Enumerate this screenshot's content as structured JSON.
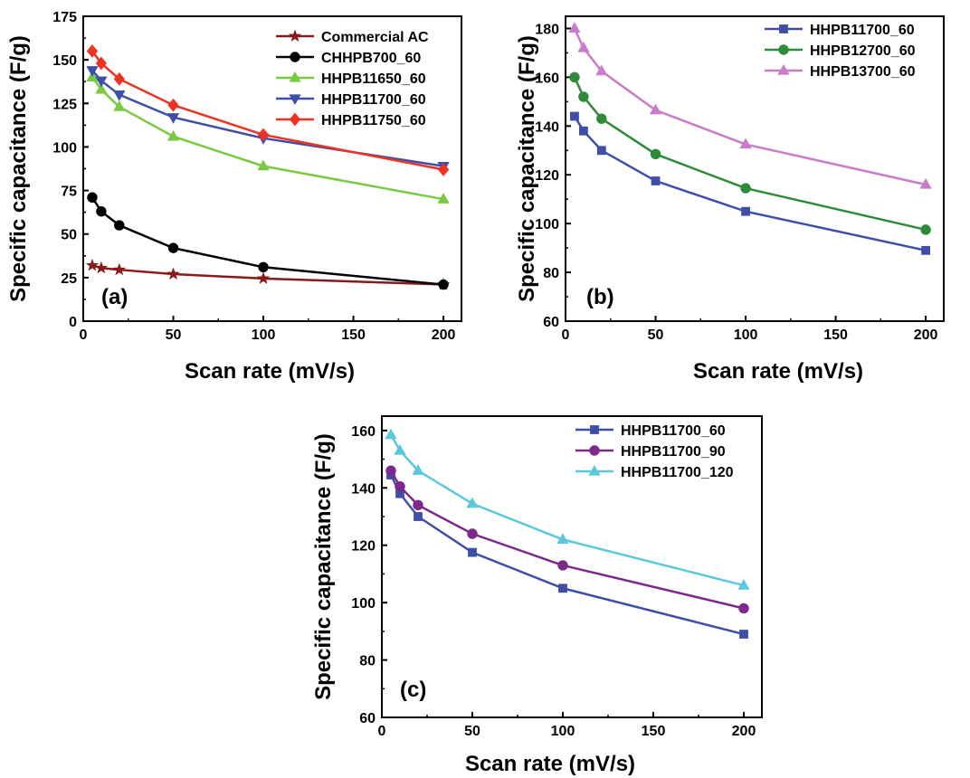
{
  "chart_data": [
    {
      "id": "a",
      "type": "line",
      "panel_label": "(a)",
      "title": "",
      "xlabel": "Scan rate (mV/s)",
      "ylabel": "Specific capacitance (F/g)",
      "xlim": [
        0,
        210
      ],
      "ylim": [
        0,
        175
      ],
      "xticks": [
        0,
        50,
        100,
        150,
        200
      ],
      "yticks": [
        0,
        25,
        50,
        75,
        100,
        125,
        150,
        175
      ],
      "grid": false,
      "legend_position": "top-right",
      "x": [
        5,
        10,
        20,
        50,
        100,
        200
      ],
      "series": [
        {
          "name": "Commercial AC",
          "color": "#8b1a1a",
          "marker": "star",
          "values": [
            32,
            30.5,
            29.5,
            27,
            24.5,
            21
          ]
        },
        {
          "name": "CHHPB700_60",
          "color": "#000000",
          "marker": "circle",
          "values": [
            71,
            63,
            55,
            42,
            31,
            21
          ]
        },
        {
          "name": "HHPB11650_60",
          "color": "#7ac943",
          "marker": "triangle-up",
          "values": [
            140,
            133,
            123,
            106,
            89,
            70
          ]
        },
        {
          "name": "HHPB11700_60",
          "color": "#3f4fa8",
          "marker": "triangle-down",
          "values": [
            144,
            138,
            130,
            117,
            105,
            89
          ]
        },
        {
          "name": "HHPB11750_60",
          "color": "#ee3224",
          "marker": "diamond",
          "values": [
            155,
            148,
            139,
            124,
            107,
            87
          ]
        }
      ]
    },
    {
      "id": "b",
      "type": "line",
      "panel_label": "(b)",
      "title": "",
      "xlabel": "Scan rate (mV/s)",
      "ylabel": "Specific capacitance (F/g)",
      "xlim": [
        0,
        210
      ],
      "ylim": [
        60,
        185
      ],
      "xticks": [
        0,
        50,
        100,
        150,
        200
      ],
      "yticks": [
        60,
        80,
        100,
        120,
        140,
        160,
        180
      ],
      "grid": false,
      "legend_position": "top-right",
      "x": [
        5,
        10,
        20,
        50,
        100,
        200
      ],
      "series": [
        {
          "name": "HHPB11700_60",
          "color": "#3f4fa8",
          "marker": "square",
          "values": [
            144,
            138,
            130,
            117.5,
            105,
            89
          ]
        },
        {
          "name": "HHPB12700_60",
          "color": "#2e8b3a",
          "marker": "circle",
          "values": [
            160,
            152,
            143,
            128.5,
            114.5,
            97.5
          ]
        },
        {
          "name": "HHPB13700_60",
          "color": "#c77dc7",
          "marker": "triangle-up",
          "values": [
            180,
            172,
            162.5,
            146.5,
            132.5,
            116
          ]
        }
      ]
    },
    {
      "id": "c",
      "type": "line",
      "panel_label": "(c)",
      "title": "",
      "xlabel": "Scan rate (mV/s)",
      "ylabel": "Specific capacitance (F/g)",
      "xlim": [
        0,
        210
      ],
      "ylim": [
        60,
        165
      ],
      "xticks": [
        0,
        50,
        100,
        150,
        200
      ],
      "yticks": [
        60,
        80,
        100,
        120,
        140,
        160
      ],
      "grid": false,
      "legend_position": "top-right",
      "x": [
        5,
        10,
        20,
        50,
        100,
        200
      ],
      "series": [
        {
          "name": "HHPB11700_60",
          "color": "#3f4fa8",
          "marker": "square",
          "values": [
            144.5,
            138,
            130,
            117.5,
            105,
            89
          ]
        },
        {
          "name": "HHPB11700_90",
          "color": "#7b2a8c",
          "marker": "circle",
          "values": [
            146,
            140.5,
            134,
            124,
            113,
            98
          ]
        },
        {
          "name": "HHPB11700_120",
          "color": "#5bc8dc",
          "marker": "triangle-up",
          "values": [
            158.5,
            153,
            146,
            134.5,
            122,
            106
          ]
        }
      ]
    }
  ]
}
